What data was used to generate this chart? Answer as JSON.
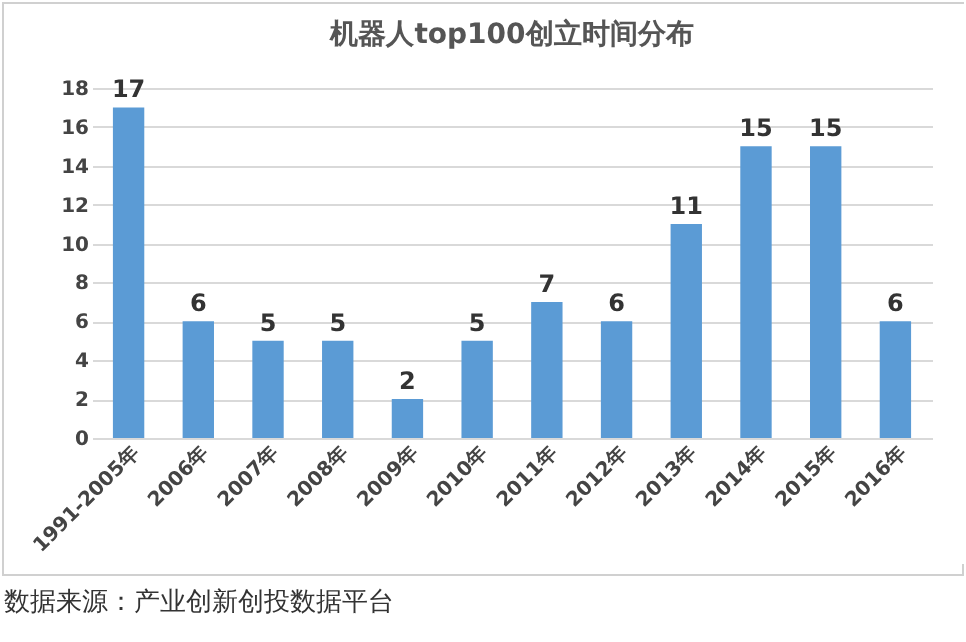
{
  "chart_data": {
    "type": "bar",
    "title": "机器人top100创立时间分布",
    "categories": [
      "1991-2005年",
      "2006年",
      "2007年",
      "2008年",
      "2009年",
      "2010年",
      "2011年",
      "2012年",
      "2013年",
      "2014年",
      "2015年",
      "2016年"
    ],
    "values": [
      17,
      6,
      5,
      5,
      2,
      5,
      7,
      6,
      11,
      15,
      15,
      6
    ],
    "color": "#5b9bd5",
    "ylim": [
      0,
      18
    ],
    "yticks": [
      0,
      2,
      4,
      6,
      8,
      10,
      12,
      14,
      16,
      18
    ],
    "grid": "y",
    "data_labels": true,
    "annotations": [
      "数据来源：产业创新创投数据平台"
    ]
  }
}
